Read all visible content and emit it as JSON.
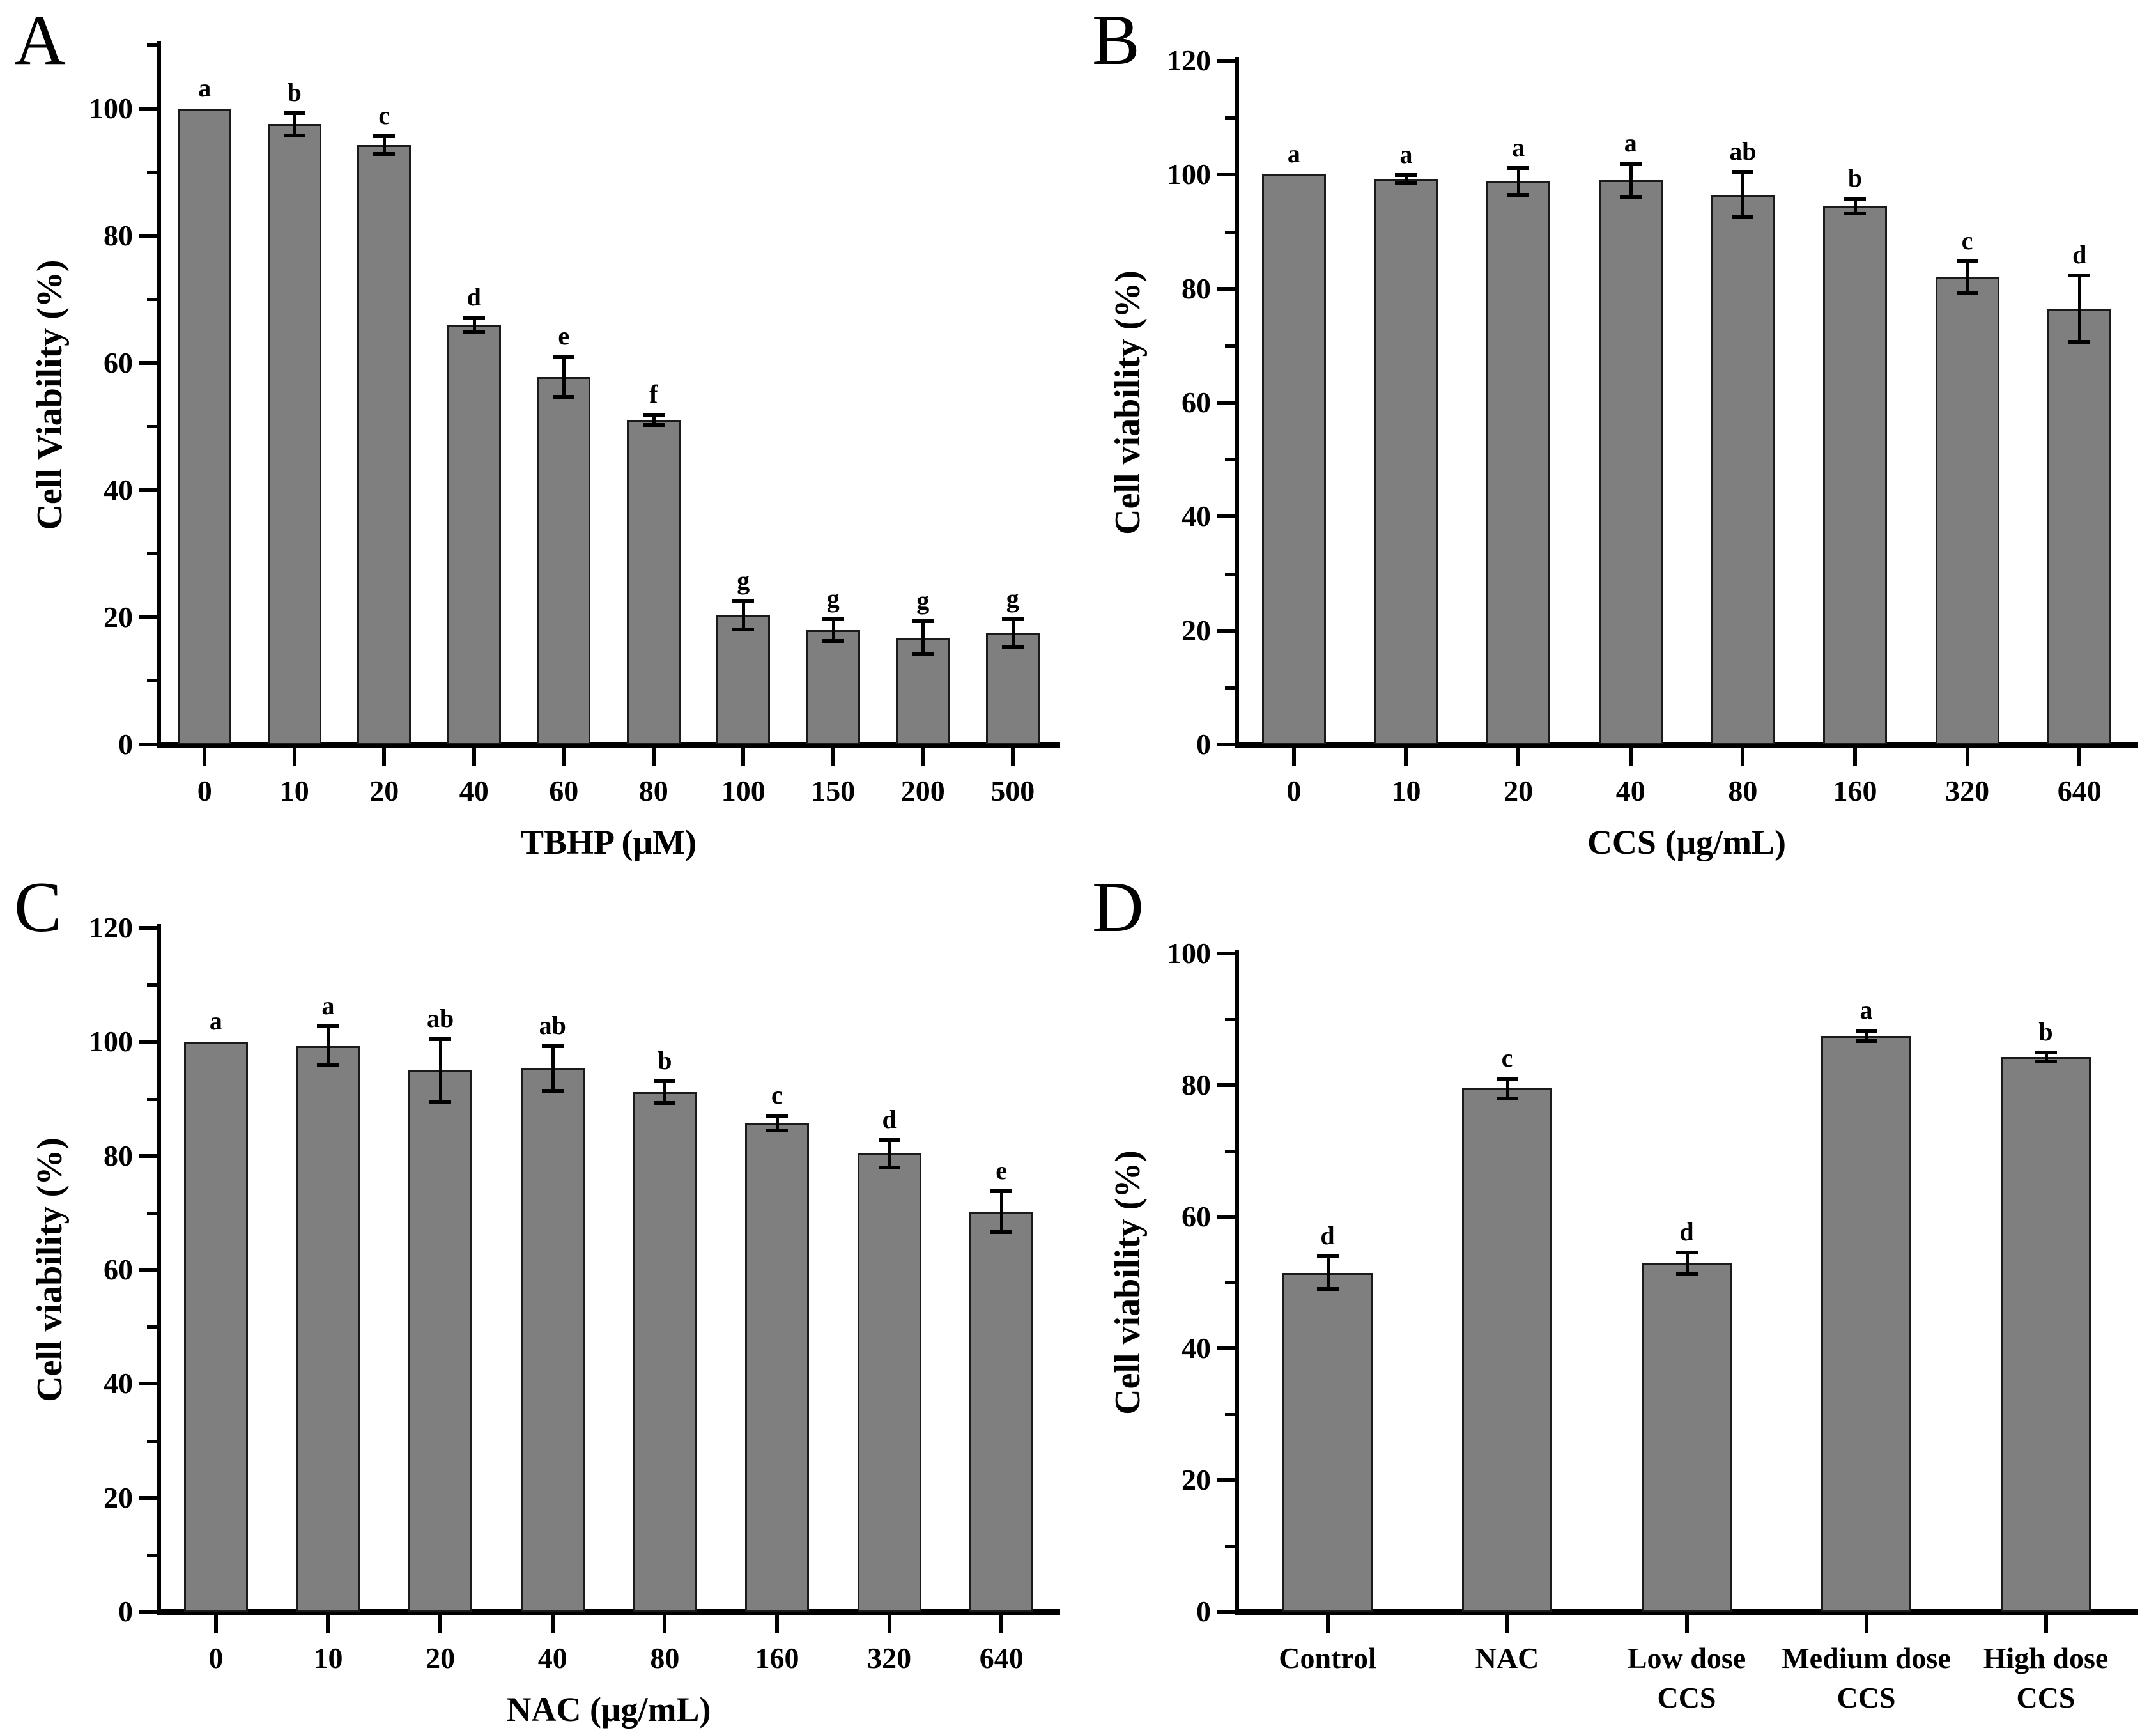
{
  "colors": {
    "bar_fill": "#7f7f7f",
    "bar_border": "#1a1a1a",
    "axis": "#000000",
    "background": "#ffffff",
    "text": "#000000"
  },
  "chart_data": [
    {
      "panel": "A",
      "type": "bar",
      "title": "",
      "ylabel": "Cell Viability (%)",
      "xlabel": "TBHP (μM)",
      "categories": [
        "0",
        "10",
        "20",
        "40",
        "60",
        "80",
        "100",
        "150",
        "200",
        "500"
      ],
      "values": [
        100,
        97.5,
        94.2,
        66,
        57.8,
        51,
        20.3,
        18,
        16.8,
        17.5
      ],
      "errors": [
        0,
        1.8,
        1.4,
        1.1,
        3.2,
        0.8,
        2.2,
        1.7,
        2.6,
        2.2
      ],
      "letters": [
        "a",
        "b",
        "c",
        "d",
        "e",
        "f",
        "g",
        "g",
        "g",
        "g"
      ],
      "ylim": [
        0,
        110
      ],
      "yticks_labeled": [
        0,
        20,
        40,
        60,
        80,
        100
      ],
      "yticks_minor": [
        10,
        30,
        50,
        70,
        90,
        110
      ],
      "grid": false,
      "legend": "none"
    },
    {
      "panel": "B",
      "type": "bar",
      "title": "",
      "ylabel": "Cell viability (%)",
      "xlabel": "CCS (μg/mL)",
      "categories": [
        "0",
        "10",
        "20",
        "40",
        "80",
        "160",
        "320",
        "640"
      ],
      "values": [
        100,
        99.2,
        98.8,
        99,
        96.5,
        94.5,
        82,
        76.5
      ],
      "errors": [
        0,
        0.7,
        2.4,
        2.9,
        4,
        1.3,
        2.8,
        5.8
      ],
      "letters": [
        "a",
        "a",
        "a",
        "a",
        "ab",
        "b",
        "c",
        "d"
      ],
      "ylim": [
        0,
        120
      ],
      "yticks_labeled": [
        0,
        20,
        40,
        60,
        80,
        100,
        120
      ],
      "yticks_minor": [
        10,
        30,
        50,
        70,
        90,
        110
      ],
      "grid": false,
      "legend": "none"
    },
    {
      "panel": "C",
      "type": "bar",
      "title": "",
      "ylabel": "Cell viability (%)",
      "xlabel": "NAC (μg/mL)",
      "categories": [
        "0",
        "10",
        "20",
        "40",
        "80",
        "160",
        "320",
        "640"
      ],
      "values": [
        100,
        99.3,
        95,
        95.3,
        91.2,
        85.7,
        80.4,
        70.2
      ],
      "errors": [
        0,
        3.4,
        5.5,
        3.9,
        1.9,
        1.3,
        2.4,
        3.6
      ],
      "letters": [
        "a",
        "a",
        "ab",
        "ab",
        "b",
        "c",
        "d",
        "e"
      ],
      "ylim": [
        0,
        120
      ],
      "yticks_labeled": [
        0,
        20,
        40,
        60,
        80,
        100,
        120
      ],
      "yticks_minor": [
        10,
        30,
        50,
        70,
        90,
        110
      ],
      "grid": false,
      "legend": "none"
    },
    {
      "panel": "D",
      "type": "bar",
      "title": "",
      "ylabel": "Cell viability (%)",
      "xlabel": "",
      "categories": [
        "Control",
        "NAC",
        "Low dose\nCCS",
        "Medium dose\nCCS",
        "High dose\nCCS"
      ],
      "values": [
        51.5,
        79.5,
        53,
        87.5,
        84.3
      ],
      "errors": [
        2.5,
        1.5,
        1.6,
        0.8,
        0.7
      ],
      "letters": [
        "d",
        "c",
        "d",
        "a",
        "b"
      ],
      "ylim": [
        0,
        100
      ],
      "yticks_labeled": [
        0,
        20,
        40,
        60,
        80,
        100
      ],
      "yticks_minor": [
        10,
        30,
        50,
        70,
        90
      ],
      "grid": false,
      "legend": "none"
    }
  ]
}
